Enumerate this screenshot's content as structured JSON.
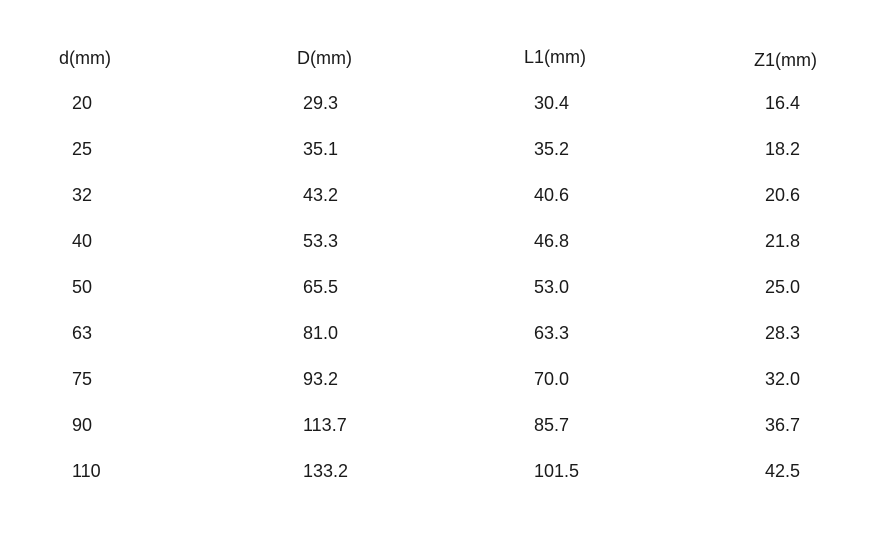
{
  "table": {
    "headers": [
      "d(mm)",
      "D(mm)",
      "L1(mm)",
      "Z1(mm)"
    ],
    "rows": [
      [
        "20",
        "29.3",
        "30.4",
        "16.4"
      ],
      [
        "25",
        "35.1",
        "35.2",
        "18.2"
      ],
      [
        "32",
        "43.2",
        "40.6",
        "20.6"
      ],
      [
        "40",
        "53.3",
        "46.8",
        "21.8"
      ],
      [
        "50",
        "65.5",
        "53.0",
        "25.0"
      ],
      [
        "63",
        "81.0",
        "63.3",
        "28.3"
      ],
      [
        "75",
        "93.2",
        "70.0",
        "32.0"
      ],
      [
        "90",
        "113.7",
        "85.7",
        "36.7"
      ],
      [
        "110",
        "133.2",
        "101.5",
        "42.5"
      ]
    ]
  }
}
